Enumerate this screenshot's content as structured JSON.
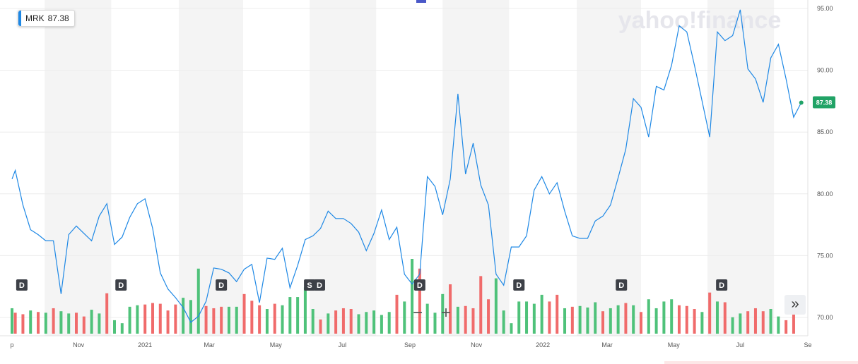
{
  "ticker": {
    "symbol": "MRK",
    "last_price": "87.38"
  },
  "watermark": "yahoo!finance",
  "controls": {
    "zoom_out": "−",
    "zoom_in": "+",
    "expand": "»"
  },
  "colors": {
    "line": "#1e88e5",
    "volume_up": "#4fc27a",
    "volume_down": "#f06b6b",
    "price_tag": "#21a366",
    "band": "#f4f4f4"
  },
  "chart_data": {
    "type": "line",
    "ylim": [
      68.5,
      95.5
    ],
    "y_ticks": [
      "95.00",
      "90.00",
      "85.00",
      "80.00",
      "75.00",
      "70.00"
    ],
    "x_ticks": [
      "p",
      "Nov",
      "2021",
      "Mar",
      "May",
      "Jul",
      "Sep",
      "Nov",
      "2022",
      "Mar",
      "May",
      "Jul",
      "Se"
    ],
    "price_series": [
      [
        "2020-09-01",
        81.2
      ],
      [
        "2020-09-04",
        81.9
      ],
      [
        "2020-09-11",
        79.1
      ],
      [
        "2020-09-18",
        77.1
      ],
      [
        "2020-09-25",
        76.7
      ],
      [
        "2020-10-02",
        76.2
      ],
      [
        "2020-10-09",
        76.2
      ],
      [
        "2020-10-16",
        71.9
      ],
      [
        "2020-10-23",
        76.7
      ],
      [
        "2020-10-30",
        77.4
      ],
      [
        "2020-11-06",
        76.8
      ],
      [
        "2020-11-13",
        76.2
      ],
      [
        "2020-11-20",
        78.2
      ],
      [
        "2020-11-27",
        79.2
      ],
      [
        "2020-12-04",
        75.9
      ],
      [
        "2020-12-11",
        76.5
      ],
      [
        "2020-12-18",
        78.1
      ],
      [
        "2020-12-25",
        79.2
      ],
      [
        "2021-01-01",
        79.6
      ],
      [
        "2021-01-08",
        77.2
      ],
      [
        "2021-01-15",
        73.6
      ],
      [
        "2021-01-22",
        72.3
      ],
      [
        "2021-01-29",
        71.6
      ],
      [
        "2021-02-05",
        70.8
      ],
      [
        "2021-02-12",
        69.6
      ],
      [
        "2021-02-19",
        70.1
      ],
      [
        "2021-02-26",
        71.3
      ],
      [
        "2021-03-05",
        74.0
      ],
      [
        "2021-03-12",
        73.9
      ],
      [
        "2021-03-19",
        73.6
      ],
      [
        "2021-03-26",
        72.9
      ],
      [
        "2021-04-02",
        73.9
      ],
      [
        "2021-04-09",
        74.3
      ],
      [
        "2021-04-16",
        71.2
      ],
      [
        "2021-04-23",
        74.8
      ],
      [
        "2021-04-30",
        74.7
      ],
      [
        "2021-05-07",
        75.6
      ],
      [
        "2021-05-14",
        72.4
      ],
      [
        "2021-05-21",
        74.2
      ],
      [
        "2021-05-28",
        76.3
      ],
      [
        "2021-06-04",
        76.6
      ],
      [
        "2021-06-11",
        77.2
      ],
      [
        "2021-06-18",
        78.6
      ],
      [
        "2021-06-25",
        78.0
      ],
      [
        "2021-07-02",
        78.0
      ],
      [
        "2021-07-09",
        77.6
      ],
      [
        "2021-07-16",
        76.9
      ],
      [
        "2021-07-23",
        75.4
      ],
      [
        "2021-07-30",
        76.8
      ],
      [
        "2021-08-06",
        78.7
      ],
      [
        "2021-08-13",
        76.3
      ],
      [
        "2021-08-20",
        77.3
      ],
      [
        "2021-08-27",
        73.5
      ],
      [
        "2021-09-03",
        72.7
      ],
      [
        "2021-09-10",
        73.5
      ],
      [
        "2021-09-17",
        81.4
      ],
      [
        "2021-09-24",
        80.6
      ],
      [
        "2021-10-01",
        78.3
      ],
      [
        "2021-10-08",
        81.2
      ],
      [
        "2021-10-15",
        88.1
      ],
      [
        "2021-10-22",
        81.6
      ],
      [
        "2021-10-29",
        84.1
      ],
      [
        "2021-11-05",
        80.7
      ],
      [
        "2021-11-12",
        79.1
      ],
      [
        "2021-11-19",
        73.5
      ],
      [
        "2021-11-26",
        72.6
      ],
      [
        "2021-12-03",
        75.7
      ],
      [
        "2021-12-10",
        75.7
      ],
      [
        "2021-12-17",
        76.6
      ],
      [
        "2021-12-24",
        80.3
      ],
      [
        "2021-12-31",
        81.4
      ],
      [
        "2022-01-07",
        80.0
      ],
      [
        "2022-01-14",
        80.9
      ],
      [
        "2022-01-21",
        78.6
      ],
      [
        "2022-01-28",
        76.6
      ],
      [
        "2022-02-04",
        76.4
      ],
      [
        "2022-02-11",
        76.4
      ],
      [
        "2022-02-18",
        77.8
      ],
      [
        "2022-02-25",
        78.2
      ],
      [
        "2022-03-04",
        79.1
      ],
      [
        "2022-03-11",
        81.3
      ],
      [
        "2022-03-18",
        83.6
      ],
      [
        "2022-03-25",
        87.7
      ],
      [
        "2022-04-01",
        87.0
      ],
      [
        "2022-04-08",
        84.6
      ],
      [
        "2022-04-15",
        88.7
      ],
      [
        "2022-04-22",
        88.4
      ],
      [
        "2022-04-29",
        90.4
      ],
      [
        "2022-05-06",
        93.6
      ],
      [
        "2022-05-13",
        93.1
      ],
      [
        "2022-05-20",
        90.4
      ],
      [
        "2022-05-27",
        87.5
      ],
      [
        "2022-06-03",
        84.6
      ],
      [
        "2022-06-10",
        93.1
      ],
      [
        "2022-06-17",
        92.4
      ],
      [
        "2022-06-24",
        92.8
      ],
      [
        "2022-07-01",
        94.9
      ],
      [
        "2022-07-08",
        90.1
      ],
      [
        "2022-07-15",
        89.3
      ],
      [
        "2022-07-22",
        87.4
      ],
      [
        "2022-07-29",
        91.0
      ],
      [
        "2022-08-05",
        92.1
      ],
      [
        "2022-08-12",
        89.3
      ],
      [
        "2022-08-19",
        86.2
      ],
      [
        "2022-08-26",
        87.38
      ]
    ],
    "volume_bars": [
      [
        "2020-09-01",
        0.34,
        "up"
      ],
      [
        "2020-09-04",
        0.28,
        "down"
      ],
      [
        "2020-09-11",
        0.26,
        "down"
      ],
      [
        "2020-09-18",
        0.31,
        "up"
      ],
      [
        "2020-09-25",
        0.29,
        "down"
      ],
      [
        "2020-10-02",
        0.28,
        "up"
      ],
      [
        "2020-10-09",
        0.34,
        "down"
      ],
      [
        "2020-10-16",
        0.3,
        "up"
      ],
      [
        "2020-10-23",
        0.27,
        "up"
      ],
      [
        "2020-10-30",
        0.28,
        "down"
      ],
      [
        "2020-11-06",
        0.23,
        "down"
      ],
      [
        "2020-11-13",
        0.32,
        "up"
      ],
      [
        "2020-11-20",
        0.27,
        "up"
      ],
      [
        "2020-11-27",
        0.54,
        "down"
      ],
      [
        "2020-12-04",
        0.18,
        "up"
      ],
      [
        "2020-12-11",
        0.14,
        "up"
      ],
      [
        "2020-12-18",
        0.36,
        "up"
      ],
      [
        "2020-12-25",
        0.38,
        "up"
      ],
      [
        "2021-01-01",
        0.39,
        "down"
      ],
      [
        "2021-01-08",
        0.41,
        "down"
      ],
      [
        "2021-01-15",
        0.4,
        "down"
      ],
      [
        "2021-01-22",
        0.31,
        "down"
      ],
      [
        "2021-01-29",
        0.39,
        "down"
      ],
      [
        "2021-02-05",
        0.48,
        "up"
      ],
      [
        "2021-02-12",
        0.45,
        "up"
      ],
      [
        "2021-02-19",
        0.87,
        "up"
      ],
      [
        "2021-02-26",
        0.37,
        "down"
      ],
      [
        "2021-03-05",
        0.34,
        "down"
      ],
      [
        "2021-03-12",
        0.36,
        "down"
      ],
      [
        "2021-03-19",
        0.36,
        "up"
      ],
      [
        "2021-03-26",
        0.36,
        "up"
      ],
      [
        "2021-04-02",
        0.53,
        "down"
      ],
      [
        "2021-04-09",
        0.44,
        "down"
      ],
      [
        "2021-04-16",
        0.38,
        "down"
      ],
      [
        "2021-04-23",
        0.33,
        "up"
      ],
      [
        "2021-04-30",
        0.4,
        "down"
      ],
      [
        "2021-05-07",
        0.38,
        "up"
      ],
      [
        "2021-05-14",
        0.49,
        "up"
      ],
      [
        "2021-05-21",
        0.49,
        "up"
      ],
      [
        "2021-05-28",
        0.62,
        "up"
      ],
      [
        "2021-06-04",
        0.33,
        "up"
      ],
      [
        "2021-06-11",
        0.19,
        "down"
      ],
      [
        "2021-06-18",
        0.27,
        "up"
      ],
      [
        "2021-06-25",
        0.31,
        "down"
      ],
      [
        "2021-07-02",
        0.34,
        "down"
      ],
      [
        "2021-07-09",
        0.33,
        "down"
      ],
      [
        "2021-07-16",
        0.26,
        "up"
      ],
      [
        "2021-07-23",
        0.29,
        "up"
      ],
      [
        "2021-07-30",
        0.31,
        "up"
      ],
      [
        "2021-08-06",
        0.25,
        "up"
      ],
      [
        "2021-08-13",
        0.29,
        "up"
      ],
      [
        "2021-08-20",
        0.52,
        "down"
      ],
      [
        "2021-08-27",
        0.43,
        "up"
      ],
      [
        "2021-09-03",
        1.0,
        "up"
      ],
      [
        "2021-09-10",
        0.87,
        "down"
      ],
      [
        "2021-09-17",
        0.4,
        "up"
      ],
      [
        "2021-09-24",
        0.28,
        "up"
      ],
      [
        "2021-10-01",
        0.53,
        "up"
      ],
      [
        "2021-10-08",
        0.66,
        "down"
      ],
      [
        "2021-10-15",
        0.36,
        "up"
      ],
      [
        "2021-10-22",
        0.37,
        "down"
      ],
      [
        "2021-10-29",
        0.34,
        "down"
      ],
      [
        "2021-11-05",
        0.77,
        "down"
      ],
      [
        "2021-11-12",
        0.46,
        "down"
      ],
      [
        "2021-11-19",
        0.74,
        "up"
      ],
      [
        "2021-11-26",
        0.31,
        "up"
      ],
      [
        "2021-12-03",
        0.14,
        "up"
      ],
      [
        "2021-12-10",
        0.43,
        "up"
      ],
      [
        "2021-12-17",
        0.43,
        "up"
      ],
      [
        "2021-12-24",
        0.4,
        "up"
      ],
      [
        "2021-12-31",
        0.52,
        "up"
      ],
      [
        "2022-01-07",
        0.43,
        "down"
      ],
      [
        "2022-01-14",
        0.52,
        "down"
      ],
      [
        "2022-01-21",
        0.34,
        "up"
      ],
      [
        "2022-01-28",
        0.36,
        "down"
      ],
      [
        "2022-02-04",
        0.37,
        "up"
      ],
      [
        "2022-02-11",
        0.35,
        "up"
      ],
      [
        "2022-02-18",
        0.42,
        "up"
      ],
      [
        "2022-02-25",
        0.3,
        "down"
      ],
      [
        "2022-03-04",
        0.34,
        "up"
      ],
      [
        "2022-03-11",
        0.38,
        "up"
      ],
      [
        "2022-03-18",
        0.41,
        "down"
      ],
      [
        "2022-03-25",
        0.38,
        "up"
      ],
      [
        "2022-04-01",
        0.29,
        "down"
      ],
      [
        "2022-04-08",
        0.46,
        "up"
      ],
      [
        "2022-04-15",
        0.34,
        "up"
      ],
      [
        "2022-04-22",
        0.43,
        "up"
      ],
      [
        "2022-04-29",
        0.46,
        "up"
      ],
      [
        "2022-05-06",
        0.38,
        "down"
      ],
      [
        "2022-05-13",
        0.37,
        "down"
      ],
      [
        "2022-05-20",
        0.33,
        "down"
      ],
      [
        "2022-05-27",
        0.29,
        "up"
      ],
      [
        "2022-06-03",
        0.55,
        "down"
      ],
      [
        "2022-06-10",
        0.43,
        "up"
      ],
      [
        "2022-06-17",
        0.42,
        "down"
      ],
      [
        "2022-06-24",
        0.22,
        "up"
      ],
      [
        "2022-07-01",
        0.27,
        "up"
      ],
      [
        "2022-07-08",
        0.3,
        "down"
      ],
      [
        "2022-07-15",
        0.34,
        "down"
      ],
      [
        "2022-07-22",
        0.3,
        "down"
      ],
      [
        "2022-07-29",
        0.33,
        "up"
      ],
      [
        "2022-08-05",
        0.23,
        "up"
      ],
      [
        "2022-08-12",
        0.18,
        "down"
      ],
      [
        "2022-08-19",
        0.26,
        "down"
      ]
    ],
    "events": [
      {
        "label": "D",
        "date": "2020-09-10"
      },
      {
        "label": "D",
        "date": "2020-12-10"
      },
      {
        "label": "D",
        "date": "2021-03-12"
      },
      {
        "label": "S",
        "date": "2021-06-01"
      },
      {
        "label": "D",
        "date": "2021-06-10"
      },
      {
        "label": "D",
        "date": "2021-09-10"
      },
      {
        "label": "D",
        "date": "2021-12-10"
      },
      {
        "label": "D",
        "date": "2022-03-14"
      },
      {
        "label": "D",
        "date": "2022-06-14"
      }
    ],
    "month_bands": [
      [
        "2020-10-01",
        "2020-12-01"
      ],
      [
        "2021-02-01",
        "2021-04-01"
      ],
      [
        "2021-06-01",
        "2021-08-01"
      ],
      [
        "2021-10-01",
        "2021-12-01"
      ],
      [
        "2022-02-01",
        "2022-04-01"
      ],
      [
        "2022-06-01",
        "2022-08-01"
      ]
    ],
    "x_tick_dates": [
      "2020-09-01",
      "2020-11-01",
      "2021-01-01",
      "2021-03-01",
      "2021-05-01",
      "2021-07-01",
      "2021-09-01",
      "2021-11-01",
      "2022-01-01",
      "2022-03-01",
      "2022-05-01",
      "2022-07-01",
      "2022-09-01"
    ],
    "grid": "horizontal"
  }
}
